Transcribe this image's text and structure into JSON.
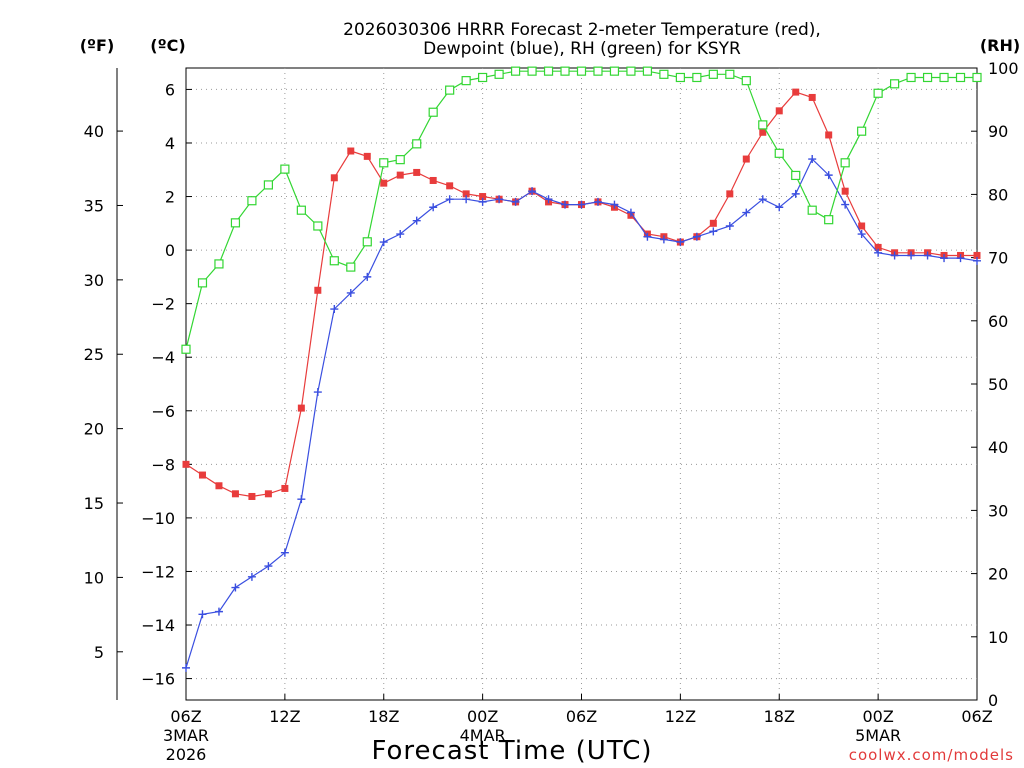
{
  "chart_data": {
    "type": "line",
    "title_line1": "2026030306 HRRR Forecast 2-meter Temperature (red),",
    "title_line2": "Dewpoint (blue), RH (green) for KSYR",
    "xlabel": "Forecast Time (UTC)",
    "credit": "coolwx.com/models",
    "axis_units": {
      "left_f": "(ºF)",
      "left_c": "(ºC)",
      "right_rh": "(RH)"
    },
    "x_ticks": [
      {
        "hour": 0,
        "label": "06Z",
        "date": "3MAR",
        "year": "2026"
      },
      {
        "hour": 6,
        "label": "12Z"
      },
      {
        "hour": 12,
        "label": "18Z"
      },
      {
        "hour": 18,
        "label": "00Z",
        "date": "4MAR"
      },
      {
        "hour": 24,
        "label": "06Z"
      },
      {
        "hour": 30,
        "label": "12Z"
      },
      {
        "hour": 36,
        "label": "18Z"
      },
      {
        "hour": 42,
        "label": "00Z",
        "date": "5MAR"
      },
      {
        "hour": 48,
        "label": "06Z"
      }
    ],
    "x_range": [
      0,
      48
    ],
    "y_celsius": {
      "range": [
        -16.8,
        6.8
      ],
      "ticks": [
        6,
        4,
        2,
        0,
        -2,
        -4,
        -6,
        -8,
        -10,
        -12,
        -14,
        -16
      ],
      "tick_labels": [
        "6",
        "4",
        "2",
        "0",
        "−2",
        "−4",
        "−6",
        "−8",
        "−10",
        "−12",
        "−14",
        "−16"
      ]
    },
    "y_fahrenheit": {
      "ticks": [
        40,
        35,
        30,
        25,
        20,
        15,
        10,
        5
      ],
      "tick_labels": [
        "40",
        "35",
        "30",
        "25",
        "20",
        "15",
        "10",
        "5"
      ]
    },
    "y_rh": {
      "range": [
        0,
        100
      ],
      "ticks": [
        100,
        90,
        80,
        70,
        60,
        50,
        40,
        30,
        20,
        10,
        0
      ],
      "tick_labels": [
        "100",
        "90",
        "80",
        "70",
        "60",
        "50",
        "40",
        "30",
        "20",
        "10",
        "0"
      ]
    },
    "grid": true,
    "series": [
      {
        "name": "2-meter Temperature",
        "unit": "C",
        "color": "#e83c3c",
        "marker": "filled-square",
        "x": [
          0,
          1,
          2,
          3,
          4,
          5,
          6,
          7,
          8,
          9,
          10,
          11,
          12,
          13,
          14,
          15,
          16,
          17,
          18,
          19,
          20,
          21,
          22,
          23,
          24,
          25,
          26,
          27,
          28,
          29,
          30,
          31,
          32,
          33,
          34,
          35,
          36,
          37,
          38,
          39,
          40,
          41,
          42,
          43,
          44,
          45,
          46,
          47,
          48
        ],
        "values": [
          -8.0,
          -8.4,
          -8.8,
          -9.1,
          -9.2,
          -9.1,
          -8.9,
          -5.9,
          -1.5,
          2.7,
          3.7,
          3.5,
          2.5,
          2.8,
          2.9,
          2.6,
          2.4,
          2.1,
          2.0,
          1.9,
          1.8,
          2.2,
          1.8,
          1.7,
          1.7,
          1.8,
          1.6,
          1.3,
          0.6,
          0.5,
          0.3,
          0.5,
          1.0,
          2.1,
          3.4,
          4.4,
          5.2,
          5.9,
          5.7,
          4.3,
          2.2,
          0.9,
          0.1,
          -0.1,
          -0.1,
          -0.1,
          -0.2,
          -0.2,
          -0.2
        ]
      },
      {
        "name": "Dewpoint",
        "unit": "C",
        "color": "#3a4fe0",
        "marker": "plus",
        "x": [
          0,
          1,
          2,
          3,
          4,
          5,
          6,
          7,
          8,
          9,
          10,
          11,
          12,
          13,
          14,
          15,
          16,
          17,
          18,
          19,
          20,
          21,
          22,
          23,
          24,
          25,
          26,
          27,
          28,
          29,
          30,
          31,
          32,
          33,
          34,
          35,
          36,
          37,
          38,
          39,
          40,
          41,
          42,
          43,
          44,
          45,
          46,
          47,
          48
        ],
        "values": [
          -15.6,
          -13.6,
          -13.5,
          -12.6,
          -12.2,
          -11.8,
          -11.3,
          -9.3,
          -5.3,
          -2.2,
          -1.6,
          -1.0,
          0.3,
          0.6,
          1.1,
          1.6,
          1.9,
          1.9,
          1.8,
          1.9,
          1.8,
          2.2,
          1.9,
          1.7,
          1.7,
          1.8,
          1.7,
          1.4,
          0.5,
          0.4,
          0.3,
          0.5,
          0.7,
          0.9,
          1.4,
          1.9,
          1.6,
          2.1,
          3.4,
          2.8,
          1.7,
          0.6,
          -0.1,
          -0.2,
          -0.2,
          -0.2,
          -0.3,
          -0.3,
          -0.4
        ]
      },
      {
        "name": "RH",
        "unit": "%",
        "color": "#33d633",
        "marker": "open-square",
        "x": [
          0,
          1,
          2,
          3,
          4,
          5,
          6,
          7,
          8,
          9,
          10,
          11,
          12,
          13,
          14,
          15,
          16,
          17,
          18,
          19,
          20,
          21,
          22,
          23,
          24,
          25,
          26,
          27,
          28,
          29,
          30,
          31,
          32,
          33,
          34,
          35,
          36,
          37,
          38,
          39,
          40,
          41,
          42,
          43,
          44,
          45,
          46,
          47,
          48
        ],
        "values": [
          55.5,
          66,
          69,
          75.5,
          79,
          81.5,
          84,
          77.5,
          75,
          69.5,
          68.5,
          72.5,
          85,
          85.5,
          88,
          93,
          96.5,
          98,
          98.5,
          99,
          99.5,
          99.5,
          99.5,
          99.5,
          99.5,
          99.5,
          99.5,
          99.5,
          99.5,
          99,
          98.5,
          98.5,
          99,
          99,
          98,
          91,
          86.5,
          83,
          77.5,
          76,
          85,
          90,
          96,
          97.5,
          98.5,
          98.5,
          98.5,
          98.5,
          98.5
        ]
      }
    ]
  }
}
